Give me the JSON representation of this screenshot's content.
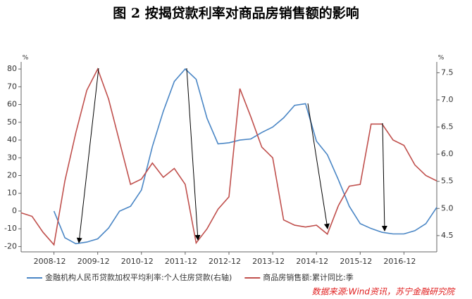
{
  "chart_data": {
    "type": "line",
    "title": "图 2  按揭贷款利率对商品房销售额的影响",
    "y_unit": "%",
    "y2_unit": "%",
    "source": "数据来源:Wind资讯，苏宁金融研究院",
    "categories": [
      null,
      null,
      null,
      "2008-12",
      null,
      null,
      null,
      "2009-12",
      null,
      null,
      null,
      "2010-12",
      null,
      null,
      null,
      "2011-12",
      null,
      null,
      null,
      "2012-12",
      null,
      null,
      null,
      "2013-12",
      null,
      null,
      null,
      "2014-12",
      null,
      null,
      null,
      "2015-12",
      null,
      null,
      null,
      "2016-12",
      null,
      null,
      null
    ],
    "ylim": [
      -23,
      84
    ],
    "yticks": [
      -20,
      -10,
      0,
      10,
      20,
      30,
      40,
      50,
      60,
      70,
      80
    ],
    "y2lim": [
      4.2,
      7.7
    ],
    "y2ticks": [
      4.5,
      {
        "value": 5,
        "label": "5.0"
      },
      5.5,
      {
        "value": 6,
        "label": "6.0"
      },
      6.5,
      {
        "value": 7,
        "label": "7.0"
      },
      7.5
    ],
    "legend": "bottom",
    "series": [
      {
        "name": "金融机构人民币贷款加权平均利率:个人住房贷款(右轴)",
        "color": "#4a86c5",
        "axis": "y2",
        "values": [
          null,
          null,
          null,
          4.95,
          4.46,
          4.35,
          4.38,
          4.44,
          4.64,
          4.95,
          5.04,
          5.34,
          6.14,
          6.79,
          7.34,
          7.57,
          7.38,
          6.66,
          6.19,
          6.21,
          6.26,
          6.28,
          6.4,
          6.5,
          6.67,
          6.9,
          6.93,
          6.24,
          5.99,
          5.53,
          5.04,
          4.72,
          4.63,
          4.56,
          4.53,
          4.53,
          4.59,
          4.72,
          5.02
        ]
      },
      {
        "name": "商品房销售额:累计同比:季",
        "color": "#c0504d",
        "values": [
          -1,
          -3,
          -12,
          -19,
          17,
          44,
          68,
          80,
          63,
          39,
          15,
          18,
          27,
          19,
          24,
          15,
          -18,
          -10,
          1,
          8,
          69,
          53,
          36,
          30,
          -5,
          -8,
          -9,
          -8,
          -13,
          3,
          14,
          15,
          49,
          49,
          40,
          37,
          26,
          20,
          17
        ]
      }
    ]
  }
}
